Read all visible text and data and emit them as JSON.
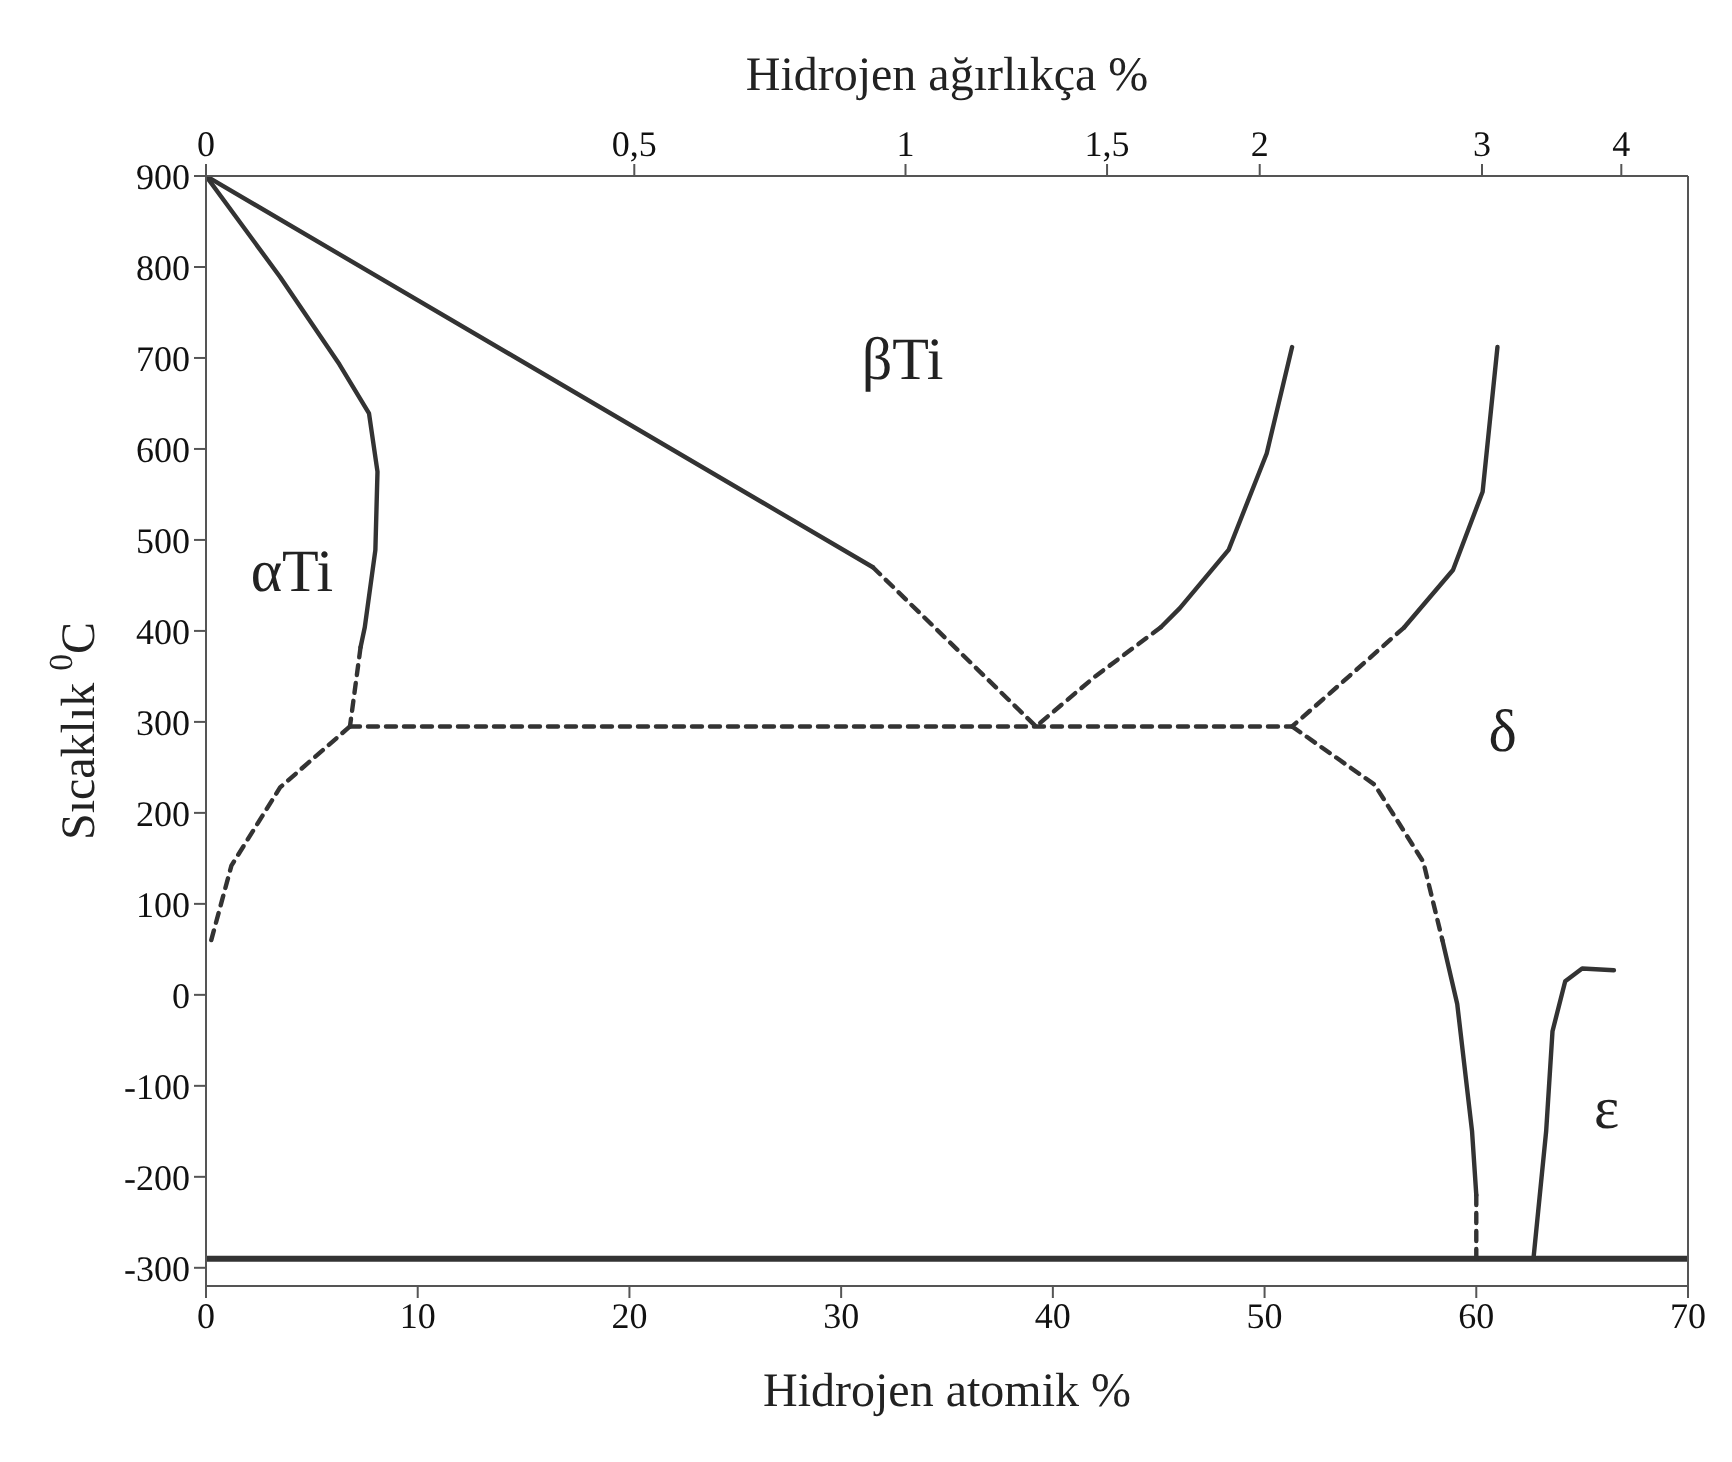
{
  "chart_data": {
    "type": "line",
    "xlabel": "Hidrojen atomik %",
    "x2label": "Hidrojen ağırlıkça %",
    "ylabel": "Sıcaklık $^{0}$C",
    "xlim": [
      0,
      70
    ],
    "xticks": [
      0,
      10,
      20,
      30,
      40,
      50,
      60,
      70
    ],
    "ylim": [
      -320,
      900
    ],
    "yticks": [
      -300,
      -200,
      -100,
      0,
      100,
      200,
      300,
      400,
      500,
      600,
      700,
      800,
      900
    ],
    "grid": false,
    "legend": false,
    "marker": "none",
    "series": [
      {
        "color": "#333333",
        "line_style": "solid",
        "x": [
          0,
          3.5,
          6.3,
          7.7,
          8.1,
          8.0,
          7.5,
          7.3
        ],
        "values": [
          900,
          789,
          693,
          639,
          575,
          489,
          404,
          382
        ]
      },
      {
        "color": "#333333",
        "line_style": "dashed",
        "x": [
          7.3,
          6.8
        ],
        "values": [
          382,
          295
        ]
      },
      {
        "color": "#333333",
        "line_style": "dashed",
        "x": [
          6.8,
          3.5,
          1.2,
          0.2
        ],
        "values": [
          295,
          228,
          142,
          56
        ]
      },
      {
        "color": "#333333",
        "line_style": "dashed",
        "x": [
          6.8,
          39.2,
          51.3
        ],
        "values": [
          295,
          295,
          295
        ]
      },
      {
        "color": "#333333",
        "line_style": "solid",
        "x": [
          0,
          31.5
        ],
        "values": [
          900,
          470
        ]
      },
      {
        "color": "#333333",
        "line_style": "dashed",
        "x": [
          31.5,
          39.2
        ],
        "values": [
          470,
          295
        ]
      },
      {
        "color": "#333333",
        "line_style": "solid",
        "x": [
          51.3,
          50.1,
          48.3,
          46.0,
          45.1
        ],
        "values": [
          712,
          595,
          489,
          425,
          404
        ]
      },
      {
        "color": "#333333",
        "line_style": "dashed",
        "x": [
          45.1,
          42,
          39.2
        ],
        "values": [
          404,
          350,
          295
        ]
      },
      {
        "color": "#333333",
        "line_style": "solid",
        "x": [
          61.0,
          60.3,
          58.9,
          56.6
        ],
        "values": [
          712,
          553,
          467,
          404
        ]
      },
      {
        "color": "#333333",
        "line_style": "dashed",
        "x": [
          56.6,
          53.5,
          51.3
        ],
        "values": [
          404,
          340,
          295
        ]
      },
      {
        "color": "#333333",
        "line_style": "dashed",
        "x": [
          51.3,
          55.2,
          57.5,
          58.4
        ],
        "values": [
          295,
          231,
          146,
          60
        ]
      },
      {
        "color": "#333333",
        "line_style": "solid",
        "x": [
          58.4,
          59.1,
          59.8,
          60.0
        ],
        "values": [
          60,
          -10,
          -150,
          -220
        ]
      },
      {
        "color": "#333333",
        "line_style": "dashed",
        "x": [
          60.0,
          60.0
        ],
        "values": [
          -220,
          -290
        ]
      },
      {
        "color": "#333333",
        "line_style": "solid",
        "x": [
          62.7,
          63.3,
          63.6,
          64.2,
          65.0,
          66.5
        ],
        "values": [
          -290,
          -150,
          -40,
          15,
          29,
          27
        ]
      }
    ],
    "ref_lines": [
      {
        "axis": "y",
        "value": -290,
        "color": "#333333",
        "line_style": "solid"
      }
    ],
    "annotations": [
      "αTi",
      "βTi",
      "δ",
      "ε",
      "0",
      "0,5",
      "1",
      "1,5",
      "2",
      "3",
      "4"
    ]
  }
}
